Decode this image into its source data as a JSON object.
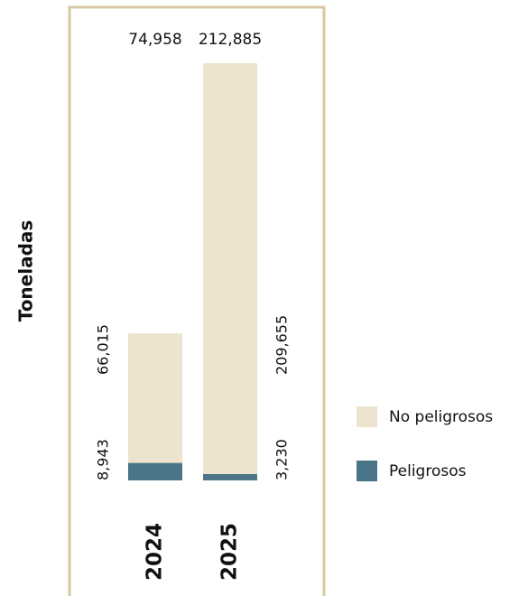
{
  "chart_data": {
    "type": "stacked_bar",
    "ylabel": "Toneladas",
    "categories": [
      "2024",
      "2025"
    ],
    "series": [
      {
        "name": "Peligrosos",
        "color": "#4a7588",
        "values": [
          8943,
          3230
        ],
        "value_labels": [
          "8,943",
          "3,230"
        ]
      },
      {
        "name": "No peligrosos",
        "color": "#ede3cf",
        "values": [
          66015,
          209655
        ],
        "value_labels": [
          "66,015",
          "209,655"
        ]
      }
    ],
    "totals": {
      "values": [
        74958,
        212885
      ],
      "value_labels": [
        "74,958",
        "212,885"
      ]
    },
    "frame_color": "#d8c8a2"
  }
}
